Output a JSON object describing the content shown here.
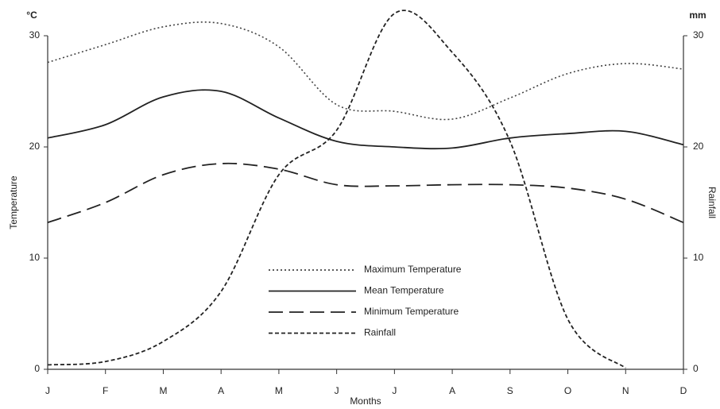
{
  "chart_data": {
    "type": "line",
    "y_label_unit": "°C",
    "y2_label_unit": "mm",
    "y_label": "Temperature",
    "y2_label": "Rainfall",
    "x_label": "Months",
    "categories": [
      "J",
      "F",
      "M",
      "A",
      "M",
      "J",
      "J",
      "A",
      "S",
      "O",
      "N",
      "D"
    ],
    "ylim": [
      0,
      30
    ],
    "yticks": [
      0,
      10,
      20,
      30
    ],
    "y2lim": [
      0,
      30
    ],
    "y2ticks": [
      0,
      10,
      20,
      30
    ],
    "series": [
      {
        "name": "Maximum Temperature",
        "color": "#444",
        "style": "dotted",
        "values": [
          27.6,
          29.2,
          30.8,
          31.1,
          29.0,
          23.8,
          23.2,
          22.5,
          24.4,
          26.6,
          27.5,
          27.0
        ]
      },
      {
        "name": "Mean Temperature",
        "color": "#222",
        "style": "solid",
        "values": [
          20.8,
          22.0,
          24.5,
          25.0,
          22.6,
          20.5,
          20.0,
          19.9,
          20.8,
          21.2,
          21.4,
          20.2
        ]
      },
      {
        "name": "Minimum Temperature",
        "color": "#222",
        "style": "longdash",
        "values": [
          13.2,
          15.0,
          17.5,
          18.5,
          18.0,
          16.6,
          16.5,
          16.6,
          16.6,
          16.3,
          15.3,
          13.2
        ]
      },
      {
        "name": "Rainfall",
        "color": "#222",
        "style": "shortdash",
        "axis": "y2",
        "values": [
          0.4,
          0.7,
          2.5,
          7.0,
          17.5,
          21.5,
          32.0,
          28.5,
          20.5,
          4.5,
          0.1,
          null
        ]
      }
    ]
  }
}
